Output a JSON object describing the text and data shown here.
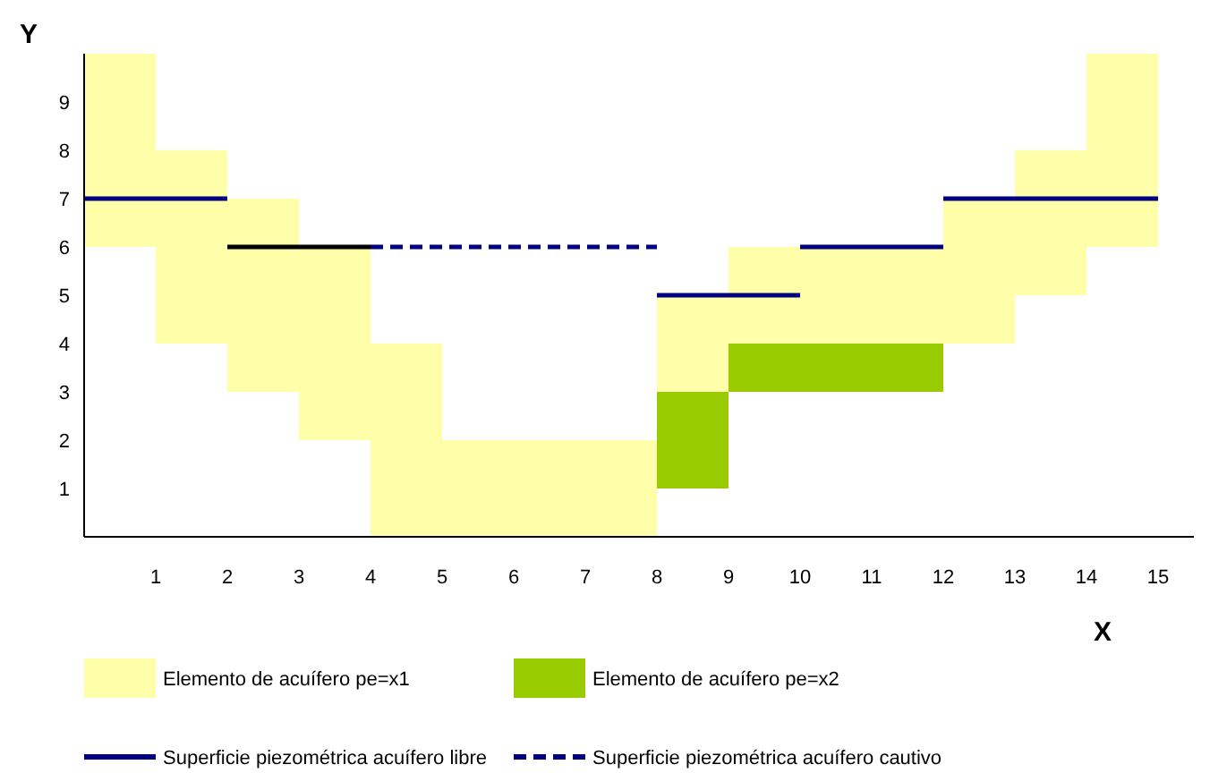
{
  "chart_data": {
    "type": "bar",
    "xlabel": "X",
    "ylabel": "Y",
    "x": [
      0.5,
      1.5,
      2.5,
      3.5,
      4.5,
      5.5,
      6.5,
      7.5,
      8.5,
      9.5,
      10.5,
      11.5,
      12.5,
      13.5,
      14.5
    ],
    "series": [
      {
        "name": "Elemento de acuífero pe=x1",
        "color": "#ffffaa",
        "base": [
          6,
          4,
          3,
          2,
          0,
          0,
          0,
          0,
          3,
          4,
          4,
          4,
          4,
          5,
          6
        ],
        "values": [
          4,
          4,
          4,
          4,
          4,
          2,
          2,
          2,
          2,
          2,
          2,
          2,
          3,
          3,
          4
        ]
      },
      {
        "name": "Elemento de acuífero pe=x2",
        "color": "#99cc00",
        "base": [
          null,
          null,
          null,
          null,
          null,
          null,
          null,
          null,
          1,
          3,
          3,
          3,
          null,
          null,
          null
        ],
        "values": [
          null,
          null,
          null,
          null,
          null,
          null,
          null,
          null,
          2,
          1,
          1,
          1,
          null,
          null,
          null
        ]
      },
      {
        "type": "line",
        "name": "Superficie piezométrica acuífero libre",
        "color": "#000080",
        "line_style": "solid",
        "x": [
          0,
          2,
          null,
          8,
          10,
          null,
          10,
          12,
          null,
          12,
          15
        ],
        "values": [
          7,
          7,
          null,
          5,
          5,
          null,
          6,
          6,
          null,
          7,
          7
        ]
      },
      {
        "type": "line",
        "color": "#000000",
        "line_style": "solid",
        "x": [
          2,
          4
        ],
        "values": [
          6,
          6
        ]
      },
      {
        "type": "line",
        "name": "Superficie piezométrica acuífero cautivo",
        "color": "#000080",
        "line_style": "dashed",
        "x": [
          4,
          8
        ],
        "values": [
          6,
          6
        ]
      }
    ],
    "xlim": [
      0,
      15.5
    ],
    "ylim": [
      0,
      10
    ],
    "xticks": [
      1,
      2,
      3,
      4,
      5,
      6,
      7,
      8,
      9,
      10,
      11,
      12,
      13,
      14,
      15
    ],
    "yticks": [
      1,
      2,
      3,
      4,
      5,
      6,
      7,
      8,
      9
    ],
    "legend": "bottom"
  }
}
